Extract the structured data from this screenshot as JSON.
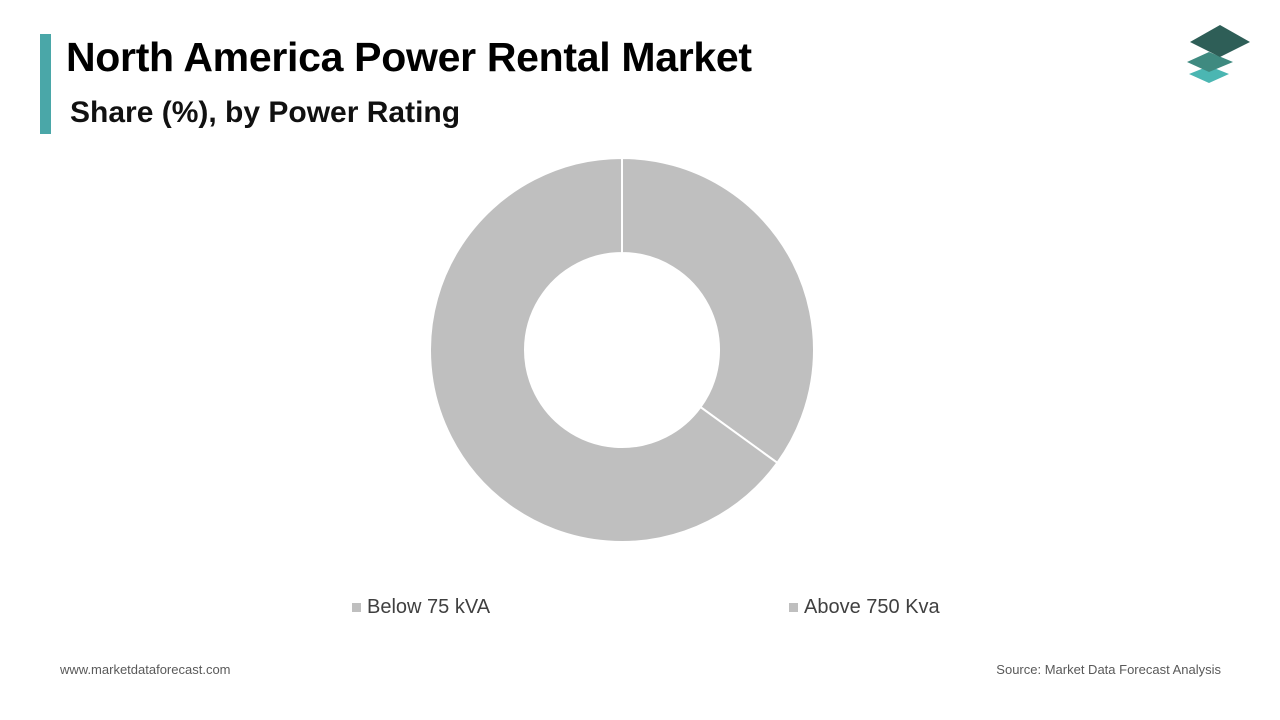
{
  "header": {
    "title": "North America Power Rental Market",
    "subtitle": "Share (%), by Power Rating"
  },
  "chart_data": {
    "type": "pie",
    "variant": "donut",
    "categories": [
      "Below 75 kVA",
      "Above 750 Kva"
    ],
    "values": [
      35,
      65
    ],
    "colors": [
      "#bfbfbf",
      "#bfbfbf"
    ],
    "slice_border_color": "#ffffff",
    "start_angle_deg": 0,
    "legend_position": "bottom"
  },
  "footer": {
    "website": "www.marketdataforecast.com",
    "source": "Source: Market Data Forecast Analysis"
  },
  "colors": {
    "accent": "#4aa7a8",
    "logo_top": "#2e5e57",
    "logo_middle": "#3f8a80",
    "logo_bottom": "#4bb6b2"
  },
  "icons": {
    "logo": "stacked-layers-icon"
  }
}
